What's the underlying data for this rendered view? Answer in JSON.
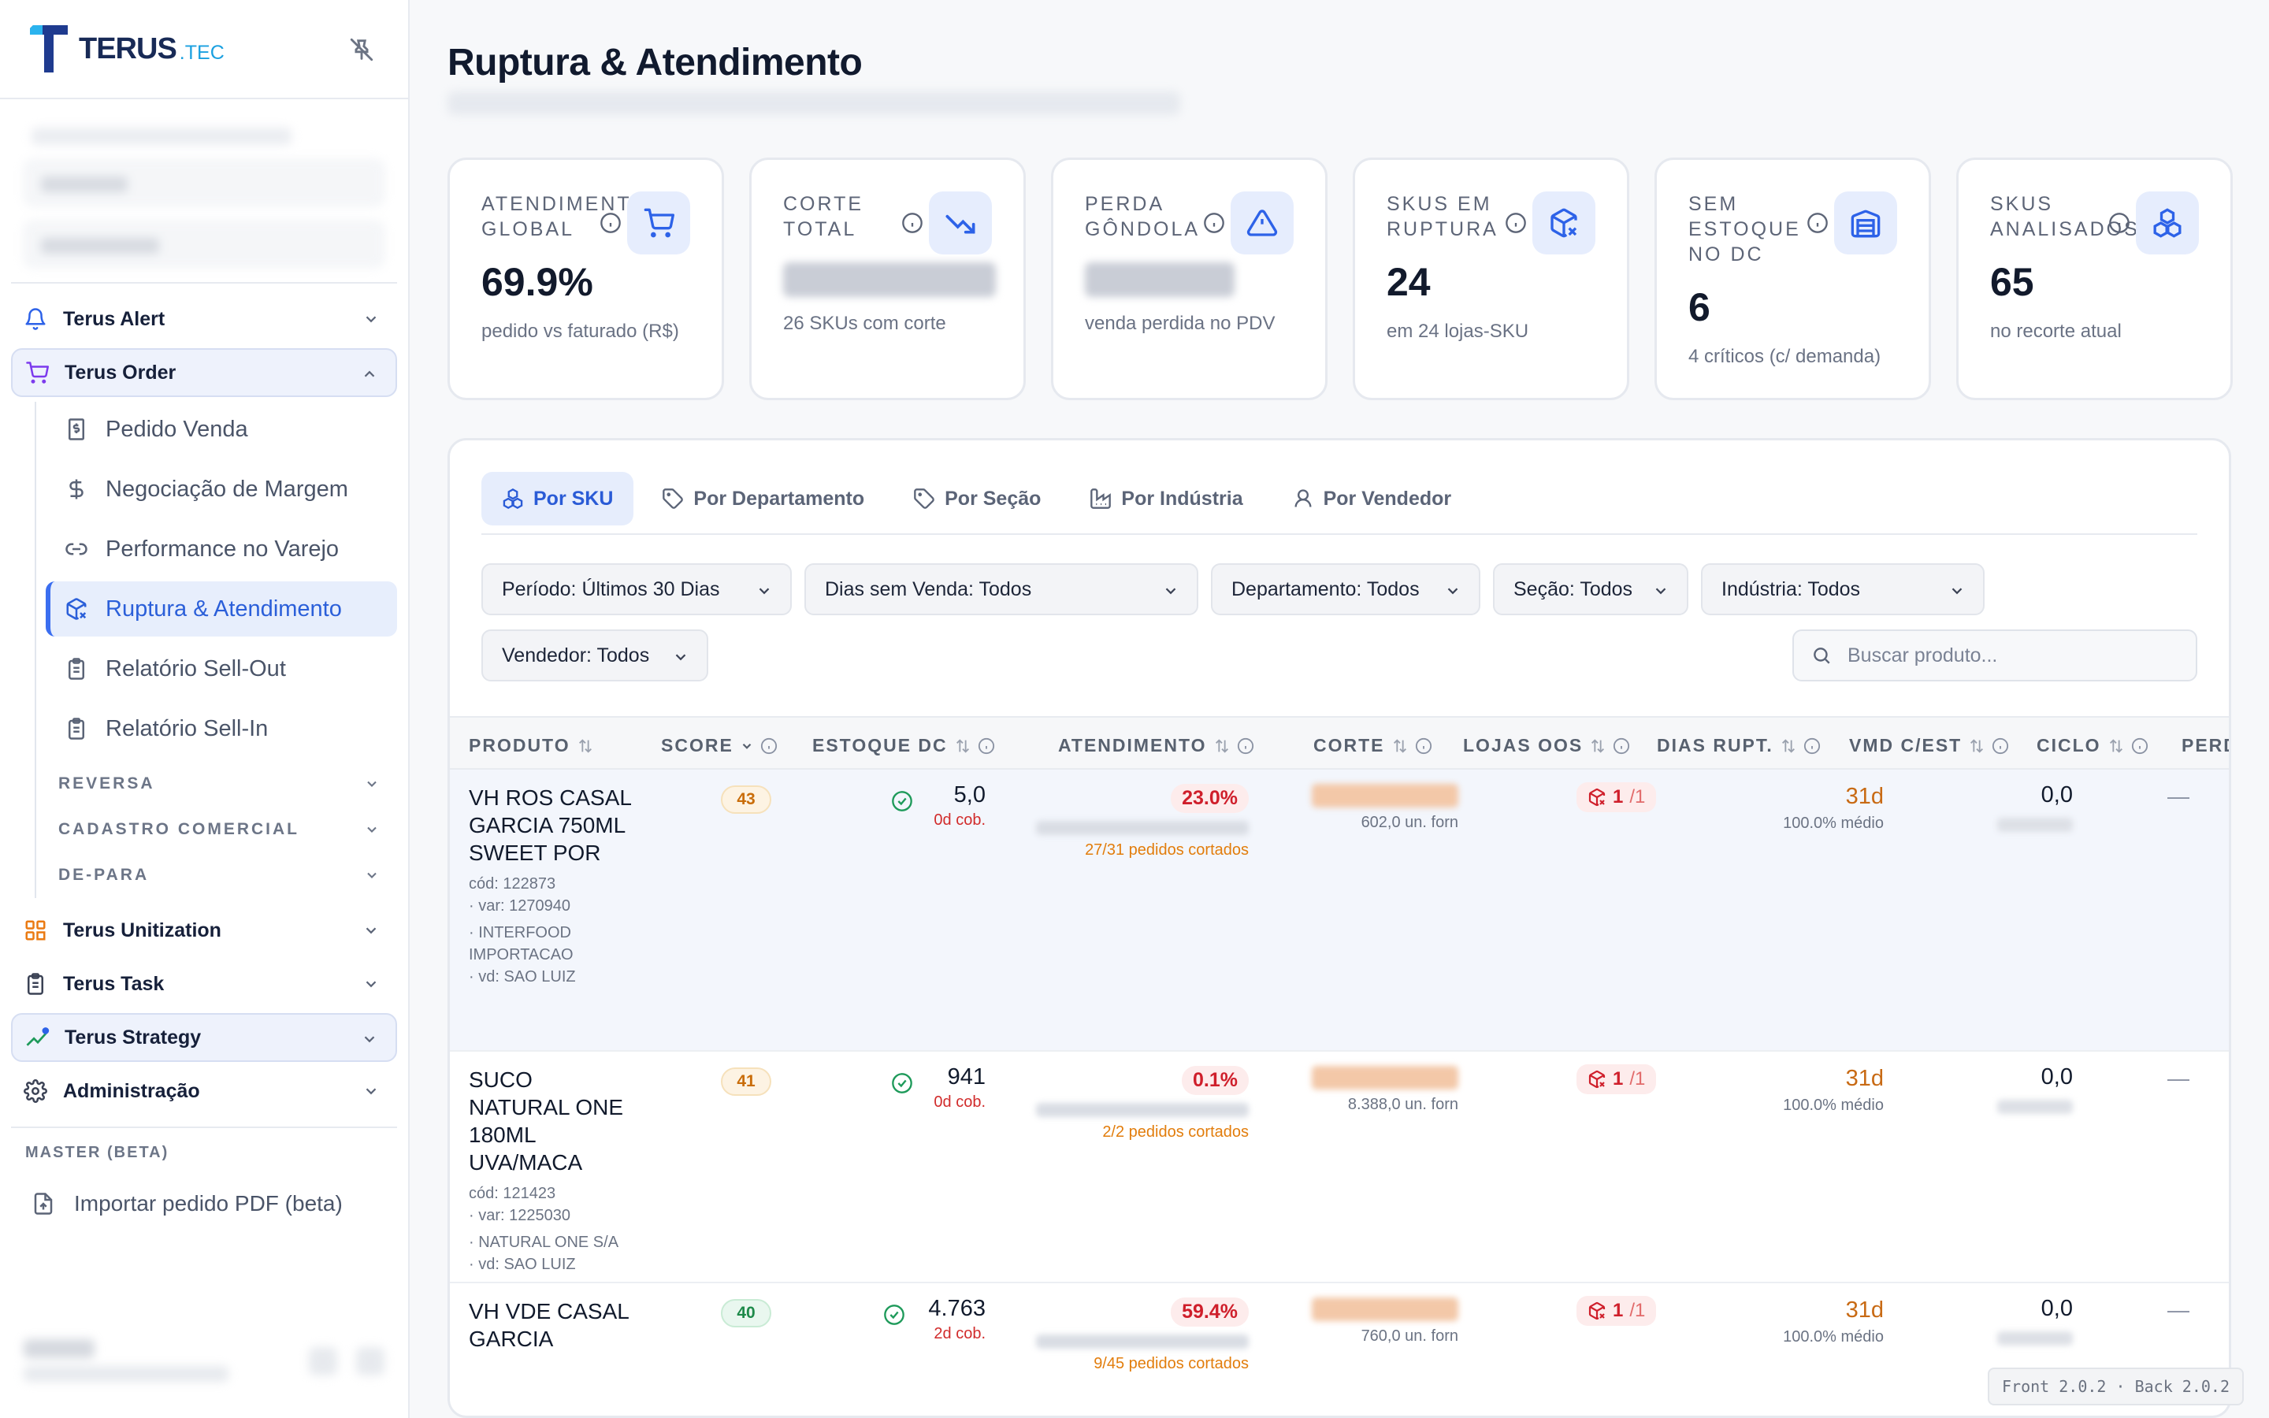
{
  "brand": {
    "name": "TERUS",
    "tld": ".TEC"
  },
  "sidebar": {
    "modules": [
      {
        "label": "Terus Alert"
      },
      {
        "label": "Terus Order"
      },
      {
        "label": "Terus Unitization"
      },
      {
        "label": "Terus Task"
      },
      {
        "label": "Terus Strategy"
      },
      {
        "label": "Administração"
      }
    ],
    "order_items": [
      {
        "label": "Pedido Venda"
      },
      {
        "label": "Negociação de Margem"
      },
      {
        "label": "Performance no Varejo"
      },
      {
        "label": "Ruptura & Atendimento"
      },
      {
        "label": "Relatório Sell-Out"
      },
      {
        "label": "Relatório Sell-In"
      }
    ],
    "groups": [
      "REVERSA",
      "CADASTRO COMERCIAL",
      "DE-PARA"
    ],
    "master_label": "MASTER (BETA)",
    "import_pdf": "Importar pedido PDF (beta)"
  },
  "page": {
    "title": "Ruptura & Atendimento"
  },
  "cards": [
    {
      "title": "ATENDIMENTO GLOBAL",
      "value": "69.9%",
      "desc": "pedido vs faturado (R$)",
      "icon": "cart-icon"
    },
    {
      "title": "CORTE TOTAL",
      "value": "",
      "desc": "26 SKUs com corte",
      "icon": "trending-down-icon"
    },
    {
      "title": "PERDA GÔNDOLA",
      "value": "",
      "desc": "venda perdida no PDV",
      "icon": "warning-icon"
    },
    {
      "title": "SKUS EM RUPTURA",
      "value": "24",
      "desc": "em 24 lojas-SKU",
      "icon": "package-x-icon"
    },
    {
      "title": "SEM ESTOQUE NO DC",
      "value": "6",
      "desc": "4 críticos (c/ demanda)",
      "icon": "warehouse-icon"
    },
    {
      "title": "SKUS ANALISADOS",
      "value": "65",
      "desc": "no recorte atual",
      "icon": "boxes-icon"
    }
  ],
  "tabs": [
    {
      "label": "Por SKU",
      "icon": "boxes-icon"
    },
    {
      "label": "Por Departamento",
      "icon": "tag-icon"
    },
    {
      "label": "Por Seção",
      "icon": "tag-icon"
    },
    {
      "label": "Por Indústria",
      "icon": "factory-icon"
    },
    {
      "label": "Por Vendedor",
      "icon": "user-icon"
    }
  ],
  "filters": {
    "periodo": "Período: Últimos 30 Dias",
    "dias_sem_venda": "Dias sem Venda: Todos",
    "departamento": "Departamento: Todos",
    "secao": "Seção: Todos",
    "industria": "Indústria: Todos",
    "vendedor": "Vendedor: Todos",
    "search_placeholder": "Buscar produto..."
  },
  "table": {
    "columns": [
      "PRODUTO",
      "SCORE",
      "ESTOQUE DC",
      "ATENDIMENTO",
      "CORTE",
      "LOJAS OOS",
      "DIAS RUPT.",
      "VMD C/EST",
      "CICLO",
      "PERD"
    ],
    "rows": [
      {
        "name": "VH ROS CASAL GARCIA 750ML SWEET POR",
        "cod": "cód: 122873",
        "var": "· var: 1270940",
        "supplier": "· INTERFOOD IMPORTACAO",
        "vd": "· vd: SAO LUIZ",
        "score": "43",
        "stock": "5,0",
        "cob": "0d cob.",
        "aten": "23.0%",
        "cut": "27/31 pedidos cortados",
        "corte_un": "602,0 un. forn",
        "oos": "1",
        "oos_total": "/1",
        "dias": "31d",
        "dias_med": "100.0% médio",
        "vmd": "0,0",
        "ciclo": "—"
      },
      {
        "name": "SUCO NATURAL ONE 180ML UVA/MACA",
        "cod": "cód: 121423",
        "var": "· var: 1225030",
        "supplier": "· NATURAL ONE S/A",
        "vd": "· vd: SAO LUIZ",
        "score": "41",
        "stock": "941",
        "cob": "0d cob.",
        "aten": "0.1%",
        "cut": "2/2 pedidos cortados",
        "corte_un": "8.388,0 un. forn",
        "oos": "1",
        "oos_total": "/1",
        "dias": "31d",
        "dias_med": "100.0% médio",
        "vmd": "0,0",
        "ciclo": "—"
      },
      {
        "name": "VH VDE CASAL GARCIA",
        "score": "40",
        "stock": "4.763",
        "cob": "2d cob.",
        "aten": "59.4%",
        "cut": "9/45 pedidos cortados",
        "corte_un": "760,0 un. forn",
        "oos": "1",
        "oos_total": "/1",
        "dias": "31d",
        "dias_med": "100.0% médio",
        "vmd": "0,0",
        "ciclo": "—"
      }
    ]
  },
  "version": "Front 2.0.2 · Back 2.0.2"
}
